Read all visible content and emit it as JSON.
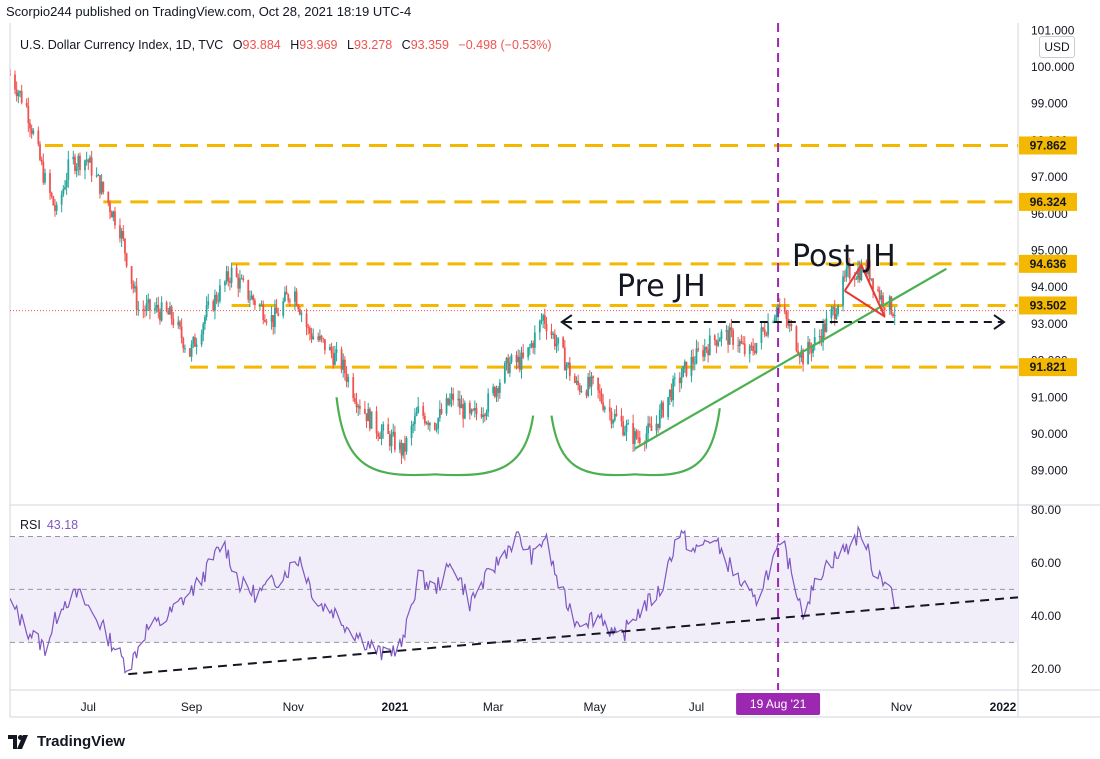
{
  "header": {
    "publisher": "Scorpio244 published on TradingView.com, Oct 28, 2021 18:19 UTC-4",
    "currency_button": "USD",
    "brand": "TradingView"
  },
  "legend": {
    "symbol": "U.S. Dollar Currency Index, 1D, TVC",
    "open_label": "O",
    "open": "93.884",
    "high_label": "H",
    "high": "93.969",
    "low_label": "L",
    "low": "93.278",
    "close_label": "C",
    "close": "93.359",
    "change": "−0.498 (−0.53%)",
    "rsi_label": "RSI",
    "rsi_value": "43.18"
  },
  "colors": {
    "up": "#26a69a",
    "down": "#ef5350",
    "levels": "#f5b800",
    "vline": "#9c27b0",
    "trend": "#4caf50",
    "rsi": "#7e57c2",
    "rsi_band": "#f1eefa"
  },
  "chart_data": [
    {
      "type": "candlestick",
      "title": "U.S. Dollar Currency Index, 1D, TVC",
      "x_ticks": [
        "Jul",
        "Sep",
        "Nov",
        "2021",
        "Mar",
        "May",
        "Jul",
        "Nov",
        "2022"
      ],
      "x_range": [
        "2020-05-15",
        "2022-01-10"
      ],
      "y_ticks": [
        89,
        90,
        91,
        92,
        93,
        94,
        95,
        96,
        97,
        98,
        99,
        100,
        101
      ],
      "ylim": [
        88.2,
        101.2
      ],
      "ohlc_last": {
        "open": 93.884,
        "high": 93.969,
        "low": 93.278,
        "close": 93.359
      },
      "price_path": [
        [
          "2020-05-15",
          99.8
        ],
        [
          "2020-05-25",
          98.9
        ],
        [
          "2020-06-05",
          96.9
        ],
        [
          "2020-06-12",
          96.0
        ],
        [
          "2020-06-20",
          97.4
        ],
        [
          "2020-06-30",
          97.5
        ],
        [
          "2020-07-10",
          96.6
        ],
        [
          "2020-07-20",
          95.6
        ],
        [
          "2020-07-31",
          93.4
        ],
        [
          "2020-08-10",
          93.4
        ],
        [
          "2020-08-20",
          93.2
        ],
        [
          "2020-08-31",
          92.2
        ],
        [
          "2020-09-10",
          93.3
        ],
        [
          "2020-09-25",
          94.4
        ],
        [
          "2020-10-05",
          93.8
        ],
        [
          "2020-10-20",
          93.1
        ],
        [
          "2020-11-01",
          94.0
        ],
        [
          "2020-11-10",
          92.8
        ],
        [
          "2020-11-20",
          92.4
        ],
        [
          "2020-11-30",
          91.9
        ],
        [
          "2020-12-10",
          90.9
        ],
        [
          "2020-12-20",
          90.2
        ],
        [
          "2020-12-31",
          89.8
        ],
        [
          "2021-01-06",
          89.5
        ],
        [
          "2021-01-15",
          90.6
        ],
        [
          "2021-01-25",
          90.3
        ],
        [
          "2021-02-05",
          91.0
        ],
        [
          "2021-02-15",
          90.4
        ],
        [
          "2021-02-25",
          90.8
        ],
        [
          "2021-03-10",
          91.9
        ],
        [
          "2021-03-20",
          92.0
        ],
        [
          "2021-03-31",
          93.2
        ],
        [
          "2021-04-10",
          92.3
        ],
        [
          "2021-04-20",
          91.3
        ],
        [
          "2021-04-30",
          91.3
        ],
        [
          "2021-05-10",
          90.6
        ],
        [
          "2021-05-25",
          89.9
        ],
        [
          "2021-06-05",
          90.1
        ],
        [
          "2021-06-15",
          91.1
        ],
        [
          "2021-06-25",
          91.8
        ],
        [
          "2021-07-05",
          92.3
        ],
        [
          "2021-07-15",
          92.7
        ],
        [
          "2021-07-25",
          92.6
        ],
        [
          "2021-08-01",
          92.1
        ],
        [
          "2021-08-10",
          92.8
        ],
        [
          "2021-08-19",
          93.5
        ],
        [
          "2021-08-28",
          92.7
        ],
        [
          "2021-09-03",
          92.1
        ],
        [
          "2021-09-12",
          92.6
        ],
        [
          "2021-09-22",
          93.4
        ],
        [
          "2021-09-30",
          94.4
        ],
        [
          "2021-10-12",
          94.5
        ],
        [
          "2021-10-20",
          93.7
        ],
        [
          "2021-10-28",
          93.36
        ]
      ],
      "horizontal_levels": [
        {
          "price": 97.862,
          "label": "97.862",
          "from": "2020-06-05"
        },
        {
          "price": 96.324,
          "label": "96.324",
          "from": "2020-07-10"
        },
        {
          "price": 94.636,
          "label": "94.636",
          "from": "2020-09-25"
        },
        {
          "price": 93.502,
          "label": "93.502",
          "from": "2020-09-25"
        },
        {
          "price": 91.821,
          "label": "91.821",
          "from": "2020-08-31"
        }
      ],
      "neckline": {
        "price": 93.05,
        "from": "2021-04-10",
        "to": "2022-01-10",
        "style": "black dashed, arrows both ends"
      },
      "current_price_line": 93.36,
      "vertical_marker": {
        "date": "2021-08-19",
        "label": "19 Aug '21"
      },
      "annotations": [
        "Pre JH",
        "Post JH"
      ],
      "trendline": {
        "from": [
          "2021-05-25",
          89.6
        ],
        "to": [
          "2021-11-28",
          94.5
        ]
      },
      "shoulder_arcs": [
        {
          "from": [
            "2020-11-27",
            91.0
          ],
          "bottom": [
            "2021-01-25",
            88.9
          ],
          "to": [
            "2021-03-25",
            90.5
          ]
        },
        {
          "from": [
            "2021-04-05",
            90.5
          ],
          "bottom": [
            "2021-05-25",
            88.9
          ],
          "to": [
            "2021-07-15",
            90.7
          ]
        }
      ],
      "flag": [
        [
          "2021-09-28",
          93.9
        ],
        [
          "2021-10-08",
          94.6
        ],
        [
          "2021-10-22",
          93.2
        ]
      ]
    },
    {
      "type": "line",
      "title": "RSI",
      "y_ticks": [
        20,
        40,
        60,
        80
      ],
      "ylim": [
        12,
        80
      ],
      "bands": [
        30,
        50,
        70
      ],
      "last_value": 43.18,
      "path": [
        [
          "2020-05-15",
          45
        ],
        [
          "2020-05-25",
          35
        ],
        [
          "2020-06-05",
          28
        ],
        [
          "2020-06-15",
          45
        ],
        [
          "2020-06-25",
          48
        ],
        [
          "2020-07-05",
          40
        ],
        [
          "2020-07-15",
          30
        ],
        [
          "2020-07-25",
          20
        ],
        [
          "2020-08-05",
          35
        ],
        [
          "2020-08-15",
          38
        ],
        [
          "2020-08-25",
          45
        ],
        [
          "2020-09-05",
          52
        ],
        [
          "2020-09-20",
          68
        ],
        [
          "2020-09-30",
          52
        ],
        [
          "2020-10-10",
          48
        ],
        [
          "2020-10-25",
          55
        ],
        [
          "2020-11-05",
          62
        ],
        [
          "2020-11-15",
          45
        ],
        [
          "2020-11-25",
          42
        ],
        [
          "2020-12-05",
          35
        ],
        [
          "2020-12-15",
          30
        ],
        [
          "2020-12-25",
          25
        ],
        [
          "2021-01-06",
          30
        ],
        [
          "2021-01-15",
          55
        ],
        [
          "2021-01-25",
          50
        ],
        [
          "2021-02-05",
          60
        ],
        [
          "2021-02-15",
          45
        ],
        [
          "2021-03-01",
          58
        ],
        [
          "2021-03-15",
          70
        ],
        [
          "2021-03-25",
          62
        ],
        [
          "2021-04-01",
          70
        ],
        [
          "2021-04-10",
          50
        ],
        [
          "2021-04-20",
          38
        ],
        [
          "2021-05-05",
          40
        ],
        [
          "2021-05-15",
          30
        ],
        [
          "2021-05-25",
          40
        ],
        [
          "2021-06-10",
          50
        ],
        [
          "2021-06-20",
          72
        ],
        [
          "2021-06-30",
          64
        ],
        [
          "2021-07-10",
          70
        ],
        [
          "2021-07-25",
          55
        ],
        [
          "2021-08-05",
          45
        ],
        [
          "2021-08-15",
          60
        ],
        [
          "2021-08-22",
          67
        ],
        [
          "2021-09-03",
          42
        ],
        [
          "2021-09-15",
          58
        ],
        [
          "2021-09-30",
          66
        ],
        [
          "2021-10-08",
          72
        ],
        [
          "2021-10-15",
          58
        ],
        [
          "2021-10-25",
          52
        ],
        [
          "2021-10-28",
          43
        ]
      ],
      "trendline": {
        "from": [
          "2020-07-25",
          18
        ],
        "to": [
          "2022-01-10",
          47
        ]
      }
    }
  ]
}
